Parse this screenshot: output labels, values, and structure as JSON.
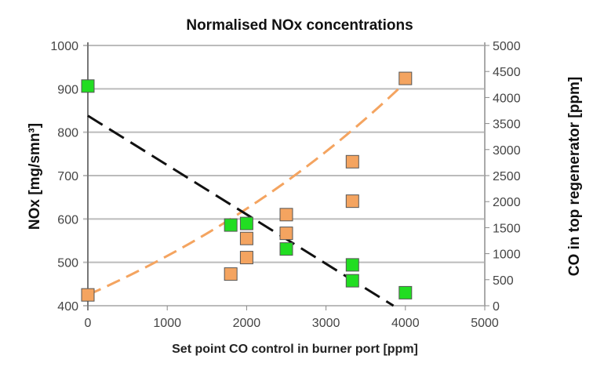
{
  "chart_data": {
    "type": "scatter",
    "title": "Normalised NOx concentrations",
    "xlabel": "Set point CO control in burner port [ppm]",
    "ylabel": "NOx [mg/smn³]",
    "y2label": "CO in top regenerator [ppm]",
    "xlim": [
      0,
      5000
    ],
    "ylim": [
      400,
      1000
    ],
    "y2lim": [
      0,
      5000
    ],
    "xticks": [
      0,
      1000,
      2000,
      3000,
      4000,
      5000
    ],
    "yticks": [
      400,
      500,
      600,
      700,
      800,
      900,
      1000
    ],
    "y2ticks": [
      0,
      500,
      1000,
      1500,
      2000,
      2500,
      3000,
      3500,
      4000,
      4500,
      5000
    ],
    "grid": "horizontal",
    "series": [
      {
        "axis": "left",
        "color": "#f4a460",
        "marker": "square",
        "x": [
          0,
          1800,
          2000,
          2000,
          2500,
          2500,
          3333,
          3333,
          4000
        ],
        "y": [
          425,
          473,
          511,
          555,
          567,
          610,
          641,
          732,
          924
        ]
      },
      {
        "axis": "right",
        "color": "#22dd22",
        "marker": "square",
        "x": [
          0,
          1800,
          2000,
          2500,
          3333,
          3333,
          4000
        ],
        "y": [
          4220,
          1550,
          1580,
          1090,
          785,
          480,
          250
        ]
      }
    ],
    "trendlines": [
      {
        "axis": "left",
        "type": "exponential",
        "color": "#f4a460",
        "style": "dashed",
        "from": [
          0,
          425
        ],
        "to": [
          4000,
          915
        ]
      },
      {
        "axis": "right",
        "type": "linear",
        "color": "#111111",
        "style": "dashed",
        "from": [
          0,
          3650
        ],
        "to": [
          3850,
          0
        ]
      }
    ]
  }
}
